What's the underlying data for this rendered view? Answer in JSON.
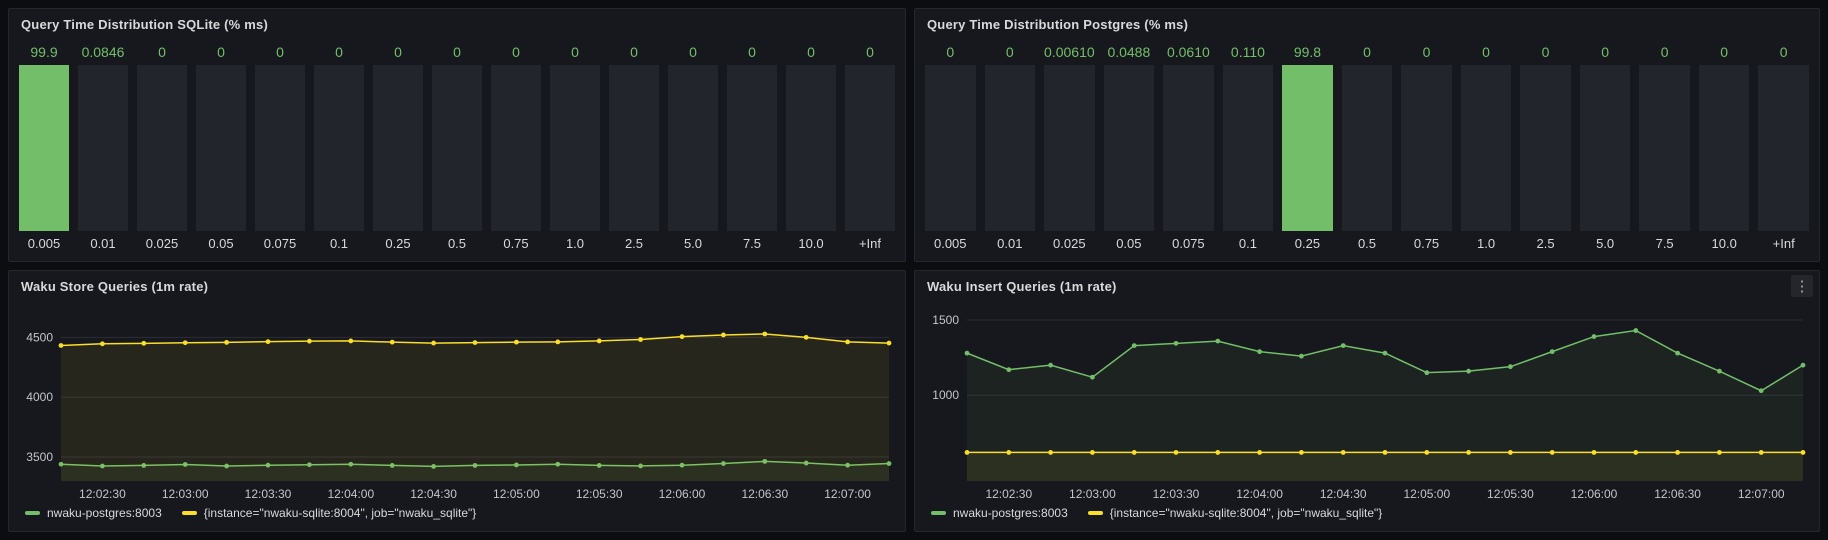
{
  "colors": {
    "green": "#73bf69",
    "yellow": "#fade2a",
    "panel_bg": "#16181d",
    "bar_bg": "#22252b"
  },
  "icons": {
    "panel_menu": "⋮"
  },
  "chart_data": [
    {
      "id": "sqlite-histogram",
      "type": "bar",
      "title": "Query Time Distribution SQLite (% ms)",
      "categories": [
        "0.005",
        "0.01",
        "0.025",
        "0.05",
        "0.075",
        "0.1",
        "0.25",
        "0.5",
        "0.75",
        "1.0",
        "2.5",
        "5.0",
        "7.5",
        "10.0",
        "+Inf"
      ],
      "values": [
        99.9,
        0.0846,
        0,
        0,
        0,
        0,
        0,
        0,
        0,
        0,
        0,
        0,
        0,
        0,
        0
      ],
      "value_labels": [
        "99.9",
        "0.0846",
        "0",
        "0",
        "0",
        "0",
        "0",
        "0",
        "0",
        "0",
        "0",
        "0",
        "0",
        "0",
        "0"
      ],
      "ylim": [
        0,
        100
      ],
      "bar_color": "#73bf69",
      "value_label_color": "#73bf69"
    },
    {
      "id": "postgres-histogram",
      "type": "bar",
      "title": "Query Time Distribution Postgres (% ms)",
      "categories": [
        "0.005",
        "0.01",
        "0.025",
        "0.05",
        "0.075",
        "0.1",
        "0.25",
        "0.5",
        "0.75",
        "1.0",
        "2.5",
        "5.0",
        "7.5",
        "10.0",
        "+Inf"
      ],
      "values": [
        0,
        0,
        0.0061,
        0.0488,
        0.061,
        0.11,
        99.8,
        0,
        0,
        0,
        0,
        0,
        0,
        0,
        0
      ],
      "value_labels": [
        "0",
        "0",
        "0.00610",
        "0.0488",
        "0.0610",
        "0.110",
        "99.8",
        "0",
        "0",
        "0",
        "0",
        "0",
        "0",
        "0",
        "0"
      ],
      "ylim": [
        0,
        100
      ],
      "bar_color": "#73bf69",
      "value_label_color": "#73bf69"
    },
    {
      "id": "store-queries",
      "type": "line",
      "title": "Waku Store Queries (1m rate)",
      "x_tick_labels": [
        "12:02:30",
        "12:03:00",
        "12:03:30",
        "12:04:00",
        "12:04:30",
        "12:05:00",
        "12:05:30",
        "12:06:00",
        "12:06:30",
        "12:07:00"
      ],
      "x_tick_indices": [
        1,
        3,
        5,
        7,
        9,
        11,
        13,
        15,
        17,
        19
      ],
      "y_ticks": [
        3500,
        4000,
        4500
      ],
      "ylim": [
        3300,
        4720
      ],
      "grid": true,
      "legend_position": "bottom",
      "series": [
        {
          "name": "nwaku-postgres:8003",
          "color": "#73bf69",
          "values": [
            3440,
            3425,
            3430,
            3438,
            3425,
            3432,
            3436,
            3440,
            3430,
            3422,
            3430,
            3434,
            3440,
            3430,
            3426,
            3432,
            3446,
            3464,
            3450,
            3432,
            3446
          ]
        },
        {
          "name": "{instance=\"nwaku-sqlite:8004\", job=\"nwaku_sqlite\"}",
          "color": "#fade2a",
          "values": [
            4432,
            4446,
            4450,
            4455,
            4458,
            4464,
            4468,
            4470,
            4460,
            4452,
            4456,
            4460,
            4462,
            4470,
            4482,
            4506,
            4520,
            4528,
            4500,
            4462,
            4452
          ]
        }
      ]
    },
    {
      "id": "insert-queries",
      "type": "line",
      "title": "Waku Insert Queries (1m rate)",
      "x_tick_labels": [
        "12:02:30",
        "12:03:00",
        "12:03:30",
        "12:04:00",
        "12:04:30",
        "12:05:00",
        "12:05:30",
        "12:06:00",
        "12:06:30",
        "12:07:00"
      ],
      "x_tick_indices": [
        1,
        3,
        5,
        7,
        9,
        11,
        13,
        15,
        17,
        19
      ],
      "y_ticks": [
        1000,
        1500
      ],
      "ylim": [
        430,
        1560
      ],
      "grid": true,
      "legend_position": "bottom",
      "series": [
        {
          "name": "nwaku-postgres:8003",
          "color": "#73bf69",
          "values": [
            1280,
            1170,
            1200,
            1120,
            1330,
            1345,
            1360,
            1290,
            1260,
            1330,
            1280,
            1150,
            1160,
            1190,
            1290,
            1390,
            1430,
            1280,
            1160,
            1030,
            1200
          ]
        },
        {
          "name": "{instance=\"nwaku-sqlite:8004\", job=\"nwaku_sqlite\"}",
          "color": "#fade2a",
          "values": [
            620,
            620,
            620,
            620,
            620,
            620,
            620,
            620,
            620,
            620,
            620,
            620,
            620,
            620,
            620,
            620,
            620,
            620,
            620,
            620,
            620
          ]
        }
      ]
    }
  ]
}
